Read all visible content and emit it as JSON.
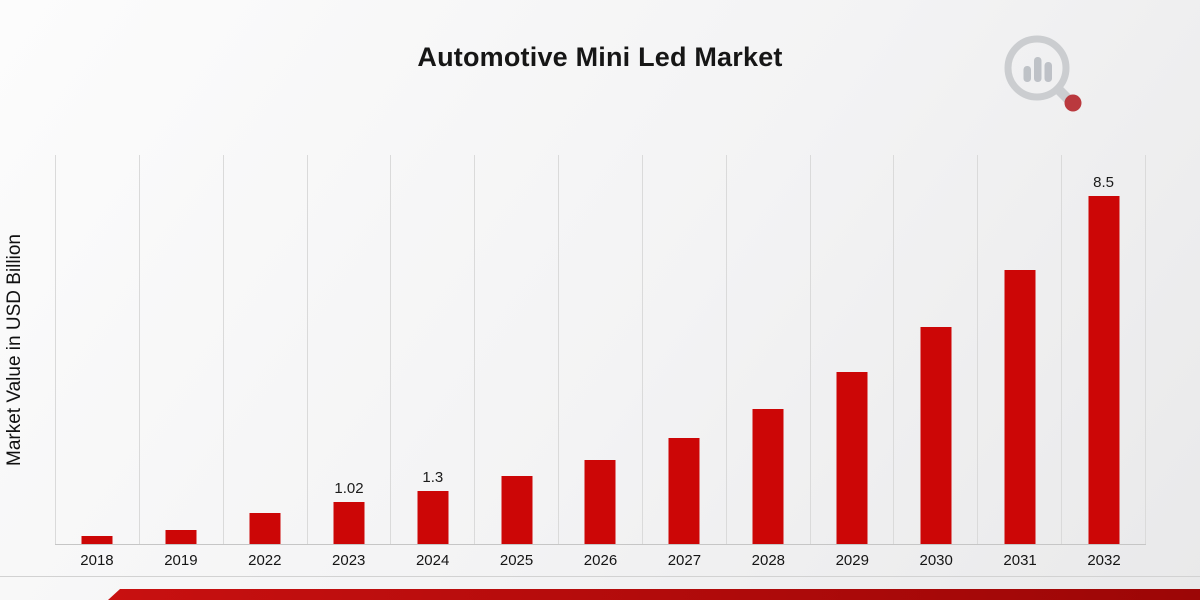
{
  "header": {
    "title": "Automotive Mini Led Market"
  },
  "branding": {
    "logo_name": "market-research-future-logo",
    "logo_gray": "#c3c7cc",
    "logo_red": "#b5262b"
  },
  "chart_data": {
    "type": "bar",
    "title": "Automotive Mini Led Market",
    "ylabel": "Market Value in USD Billion",
    "xlabel": "",
    "categories": [
      "2018",
      "2019",
      "2022",
      "2023",
      "2024",
      "2025",
      "2026",
      "2027",
      "2028",
      "2029",
      "2030",
      "2031",
      "2032"
    ],
    "values": [
      0.2,
      0.35,
      0.75,
      1.02,
      1.3,
      1.65,
      2.05,
      2.6,
      3.3,
      4.2,
      5.3,
      6.7,
      8.5
    ],
    "data_labels": [
      "",
      "",
      "",
      "1.02",
      "1.3",
      "",
      "",
      "",
      "",
      "",
      "",
      "",
      "8.5"
    ],
    "bar_color": "#cc0606",
    "ylim": [
      0,
      9.5
    ],
    "grid": "vertical-only",
    "legend": "none"
  },
  "footer": {
    "stripe_color": "#b30909"
  }
}
